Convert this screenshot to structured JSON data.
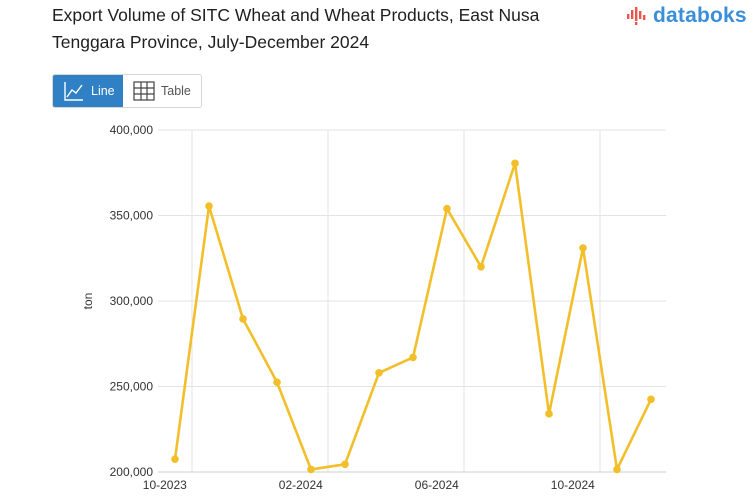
{
  "header": {
    "title": "Export Volume of SITC Wheat and Wheat Products, East Nusa Tenggara Province, July-December 2024",
    "logo_text": "databoks"
  },
  "view_toggle": {
    "line_label": "Line",
    "table_label": "Table",
    "active": "Line"
  },
  "colors": {
    "series": "#f2bf2b",
    "active_button": "#2f80c4",
    "logo_bars": "#e8574a",
    "logo_text": "#3b8fd9"
  },
  "chart_data": {
    "type": "line",
    "title": "Export Volume of SITC Wheat and Wheat Products, East Nusa Tenggara Province, July-December 2024",
    "xlabel": "",
    "ylabel": "ton",
    "x": [
      "2023-10",
      "2023-11",
      "2023-12",
      "2024-01",
      "2024-02",
      "2024-03",
      "2024-04",
      "2024-05",
      "2024-06",
      "2024-07",
      "2024-08",
      "2024-09",
      "2024-10",
      "2024-11",
      "2024-12"
    ],
    "x_tick_labels": [
      "10-2023",
      "02-2024",
      "06-2024",
      "10-2024"
    ],
    "y_tick_labels": [
      "400,000",
      "350,000",
      "300,000",
      "250,000",
      "200,000"
    ],
    "y_ticks": [
      400000,
      350000,
      300000,
      250000,
      200000
    ],
    "ylim": [
      200000,
      400000
    ],
    "series": [
      {
        "values": [
          207500,
          355500,
          289500,
          252500,
          201500,
          204500,
          258000,
          267000,
          354000,
          320000,
          380500,
          234000,
          331000,
          201500,
          242500
        ]
      }
    ],
    "grid": true,
    "legend": "none"
  }
}
